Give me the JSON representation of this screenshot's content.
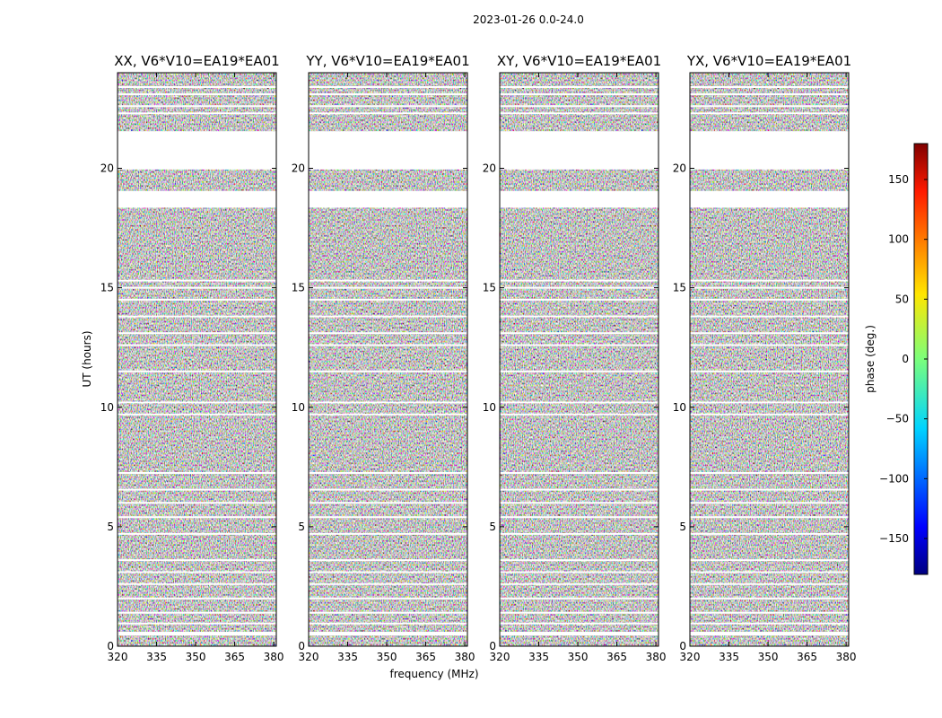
{
  "suptitle": "2023-01-26 0.0-24.0",
  "chart_data": {
    "type": "heatmap",
    "xlabel": "frequency (MHz)",
    "ylabel": "UT (hours)",
    "xlim": [
      320,
      381
    ],
    "ylim": [
      0,
      24
    ],
    "x_ticks": [
      320,
      335,
      350,
      365,
      380
    ],
    "y_ticks": [
      0,
      5,
      10,
      15,
      20
    ],
    "panels": [
      {
        "title": "XX, V6*V10=EA19*EA01",
        "pol": "XX"
      },
      {
        "title": "YY, V6*V10=EA19*EA01",
        "pol": "YY"
      },
      {
        "title": "XY, V6*V10=EA19*EA01",
        "pol": "XY"
      },
      {
        "title": "YX, V6*V10=EA19*EA01",
        "pol": "YX"
      }
    ],
    "data_gaps_hours": [
      [
        0.45,
        0.6
      ],
      [
        18.35,
        19.05
      ],
      [
        19.95,
        21.55
      ]
    ],
    "flag_lines_hours": [
      0.95,
      1.4,
      2.0,
      2.6,
      3.1,
      3.6,
      4.7,
      5.4,
      6.0,
      6.55,
      7.25,
      9.7,
      10.2,
      11.5,
      12.6,
      13.1,
      13.8,
      14.5,
      15.0,
      15.3,
      22.3,
      22.6,
      23.1,
      23.4
    ],
    "colorbar": {
      "label": "phase (deg.)",
      "range": [
        -180,
        180
      ],
      "ticks": [
        -150,
        -100,
        -50,
        0,
        50,
        100,
        150
      ],
      "colormap": "jet"
    }
  }
}
